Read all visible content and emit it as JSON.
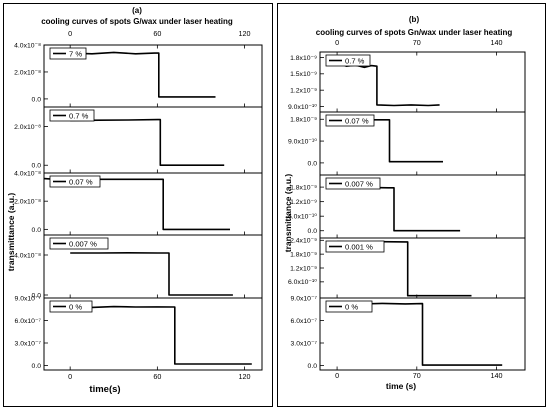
{
  "chart_data": [
    {
      "type": "line",
      "panel_label": "(a)",
      "title": "cooling curves of spots G/wax under laser heating",
      "xlabel": "time(s)",
      "ylabel": "transmittance (a.u.)",
      "x_ticks": [
        "0",
        "60",
        "120"
      ],
      "x_tick_values": [
        0,
        60,
        120
      ],
      "xlim": [
        -18,
        132
      ],
      "subplots": [
        {
          "legend": "7 %",
          "ylim": [
            -6e-09,
            4e-08
          ],
          "y_ticks": [
            "4.0x10⁻⁸",
            "2.0x10⁻⁸",
            "0.0"
          ],
          "y_tick_values": [
            4e-08,
            2e-08,
            0.0
          ],
          "x": [
            0,
            15,
            30,
            45,
            58,
            61,
            61,
            80,
            100
          ],
          "y": [
            3.4e-08,
            3.35e-08,
            3.45e-08,
            3.35e-08,
            3.4e-08,
            3.4e-08,
            1.5e-09,
            1.5e-09,
            1.5e-09
          ]
        },
        {
          "legend": "0.7 %",
          "ylim": [
            -4e-09,
            3e-08
          ],
          "y_ticks": [
            "2.0x10⁻⁸",
            "0.0"
          ],
          "y_tick_values": [
            2e-08,
            0.0
          ],
          "x": [
            0,
            20,
            40,
            60,
            62,
            62,
            80,
            106
          ],
          "y": [
            2.3e-08,
            2.32e-08,
            2.33e-08,
            2.35e-08,
            2.35e-08,
            0.0,
            0.0,
            0.0
          ]
        },
        {
          "legend": "0.07 %",
          "ylim": [
            -4e-09,
            4e-08
          ],
          "y_ticks": [
            "4.0x10⁻⁸",
            "2.0x10⁻⁸",
            "0.0"
          ],
          "y_tick_values": [
            4e-08,
            2e-08,
            0.0
          ],
          "x": [
            -18,
            -10,
            0,
            20,
            40,
            64,
            64,
            90,
            110
          ],
          "y": [
            3.6e-08,
            3.55e-08,
            3.5e-08,
            3.55e-08,
            3.55e-08,
            3.55e-08,
            0.0,
            0.0,
            0.0
          ]
        },
        {
          "legend": "0.007 %",
          "ylim": [
            -3e-09,
            6e-08
          ],
          "y_ticks": [
            "4.0x10⁻⁸",
            "0.0"
          ],
          "y_tick_values": [
            4e-08,
            0.0
          ],
          "x": [
            0,
            20,
            40,
            60,
            68,
            68,
            90,
            112
          ],
          "y": [
            4.2e-08,
            4.2e-08,
            4.22e-08,
            4.2e-08,
            4.2e-08,
            0.0,
            0.0,
            0.0
          ]
        },
        {
          "legend": "0 %",
          "ylim": [
            -6e-08,
            9e-07
          ],
          "y_ticks": [
            "9.0x10⁻⁷",
            "6.0x10⁻⁷",
            "3.0x10⁻⁷",
            "0.0"
          ],
          "y_tick_values": [
            9e-07,
            6e-07,
            3e-07,
            0.0
          ],
          "x": [
            0,
            15,
            30,
            45,
            60,
            72,
            72,
            100,
            125
          ],
          "y": [
            7.8e-07,
            7.75e-07,
            7.85e-07,
            7.8e-07,
            7.82e-07,
            7.8e-07,
            2e-08,
            2e-08,
            2e-08
          ]
        }
      ]
    },
    {
      "type": "line",
      "panel_label": "(b)",
      "title": "cooling curves of  spots Gn/wax under laser heating",
      "xlabel": "time (s)",
      "ylabel": "transmittance (a.u.)",
      "x_ticks": [
        "0",
        "70",
        "140"
      ],
      "x_tick_values": [
        0,
        70,
        140
      ],
      "xlim": [
        -15,
        165
      ],
      "subplots": [
        {
          "legend": "0.7 %",
          "ylim": [
            8e-10,
            1.9e-09
          ],
          "y_ticks": [
            "1.8x10⁻⁹",
            "1.5x10⁻⁹",
            "1.2x10⁻⁹",
            "9.0x10⁻¹⁰"
          ],
          "y_tick_values": [
            1.8e-09,
            1.5e-09,
            1.2e-09,
            9e-10
          ],
          "x": [
            0,
            8,
            16,
            24,
            30,
            35,
            35,
            50,
            65,
            80,
            90
          ],
          "y": [
            1.72e-09,
            1.64e-09,
            1.66e-09,
            1.62e-09,
            1.65e-09,
            1.64e-09,
            9.3e-10,
            9.2e-10,
            9.3e-10,
            9.2e-10,
            9.3e-10
          ]
        },
        {
          "legend": "0.07 %",
          "ylim": [
            -5e-10,
            2.1e-09
          ],
          "y_ticks": [
            "1.8x10⁻⁹",
            "9.0x10⁻¹⁰",
            "0.0"
          ],
          "y_tick_values": [
            1.8e-09,
            9e-10,
            0.0
          ],
          "x": [
            0,
            20,
            40,
            46,
            46,
            70,
            93
          ],
          "y": [
            1.78e-09,
            1.78e-09,
            1.78e-09,
            1.78e-09,
            5e-11,
            5e-11,
            5e-11
          ]
        },
        {
          "legend": "0.007 %",
          "ylim": [
            -3e-10,
            2.3e-09
          ],
          "y_ticks": [
            "1.8x10⁻⁹",
            "1.2x10⁻⁹",
            "6.0x10⁻¹⁰",
            "0.0"
          ],
          "y_tick_values": [
            1.8e-09,
            1.2e-09,
            6e-10,
            0.0
          ],
          "x": [
            0,
            15,
            30,
            45,
            50,
            50,
            80,
            108
          ],
          "y": [
            1.78e-09,
            1.76e-09,
            1.78e-09,
            1.77e-09,
            1.77e-09,
            0.0,
            0.0,
            0.0
          ]
        },
        {
          "legend": "0.001 %",
          "ylim": [
            -1e-10,
            2.5e-09
          ],
          "y_ticks": [
            "2.4x10⁻⁹",
            "1.8x10⁻⁹",
            "1.2x10⁻⁹",
            "6.0x10⁻¹⁰"
          ],
          "y_tick_values": [
            2.4e-09,
            1.8e-09,
            1.2e-09,
            6e-10
          ],
          "x": [
            0,
            20,
            40,
            60,
            62,
            62,
            90,
            118
          ],
          "y": [
            2.35e-09,
            2.33e-09,
            2.34e-09,
            2.33e-09,
            2.33e-09,
            0.0,
            0.0,
            0.0
          ]
        },
        {
          "legend": "0 %",
          "ylim": [
            -6e-08,
            9e-07
          ],
          "y_ticks": [
            "9.0x10⁻⁷",
            "6.0x10⁻⁷",
            "3.0x10⁻⁷",
            "0.0"
          ],
          "y_tick_values": [
            9e-07,
            6e-07,
            3e-07,
            0.0
          ],
          "x": [
            0,
            20,
            40,
            60,
            75,
            75,
            110,
            145
          ],
          "y": [
            8.3e-07,
            8.2e-07,
            8.28e-07,
            8.22e-07,
            8.25e-07,
            5e-09,
            5e-09,
            5e-09
          ]
        }
      ]
    }
  ]
}
